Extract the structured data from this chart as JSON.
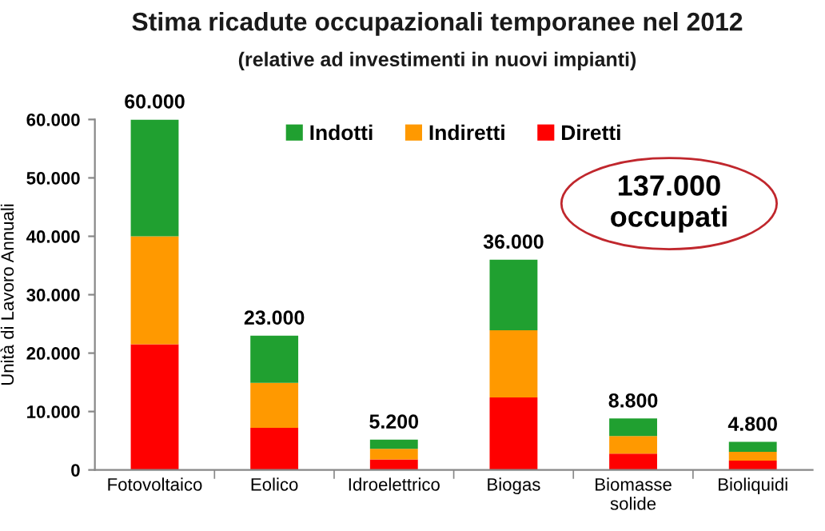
{
  "chart_data": {
    "type": "bar",
    "stacked": true,
    "title": "Stima ricadute occupazionali temporanee nel 2012",
    "subtitle": "(relative ad investimenti in nuovi impianti)",
    "ylabel": "Unità di Lavoro Annuali",
    "categories": [
      "Fotovoltaico",
      "Eolico",
      "Idroelettrico",
      "Biogas",
      "Biomasse solide",
      "Bioliquidi"
    ],
    "series": [
      {
        "name": "Diretti",
        "color": "#ff0000",
        "values": [
          21500,
          7200,
          1800,
          12400,
          2800,
          1600
        ]
      },
      {
        "name": "Indiretti",
        "color": "#ff9900",
        "values": [
          18500,
          7700,
          1800,
          11500,
          3000,
          1500
        ]
      },
      {
        "name": "Indotti",
        "color": "#20a030",
        "values": [
          20000,
          8100,
          1600,
          12100,
          3000,
          1700
        ]
      }
    ],
    "totals": [
      "60.000",
      "23.000",
      "5.200",
      "36.000",
      "8.800",
      "4.800"
    ],
    "ylim": [
      0,
      60000
    ],
    "yticks": [
      0,
      {
        "value": 10000,
        "label": "10.000"
      },
      {
        "value": 20000,
        "label": "20.000"
      },
      {
        "value": 30000,
        "label": "30.000"
      },
      {
        "value": 40000,
        "label": "40.000"
      },
      {
        "value": 50000,
        "label": "50.000"
      },
      {
        "value": 60000,
        "label": "60.000"
      }
    ],
    "annotations": [
      "137.000\noccupati"
    ],
    "legend": "top",
    "grid": false
  }
}
